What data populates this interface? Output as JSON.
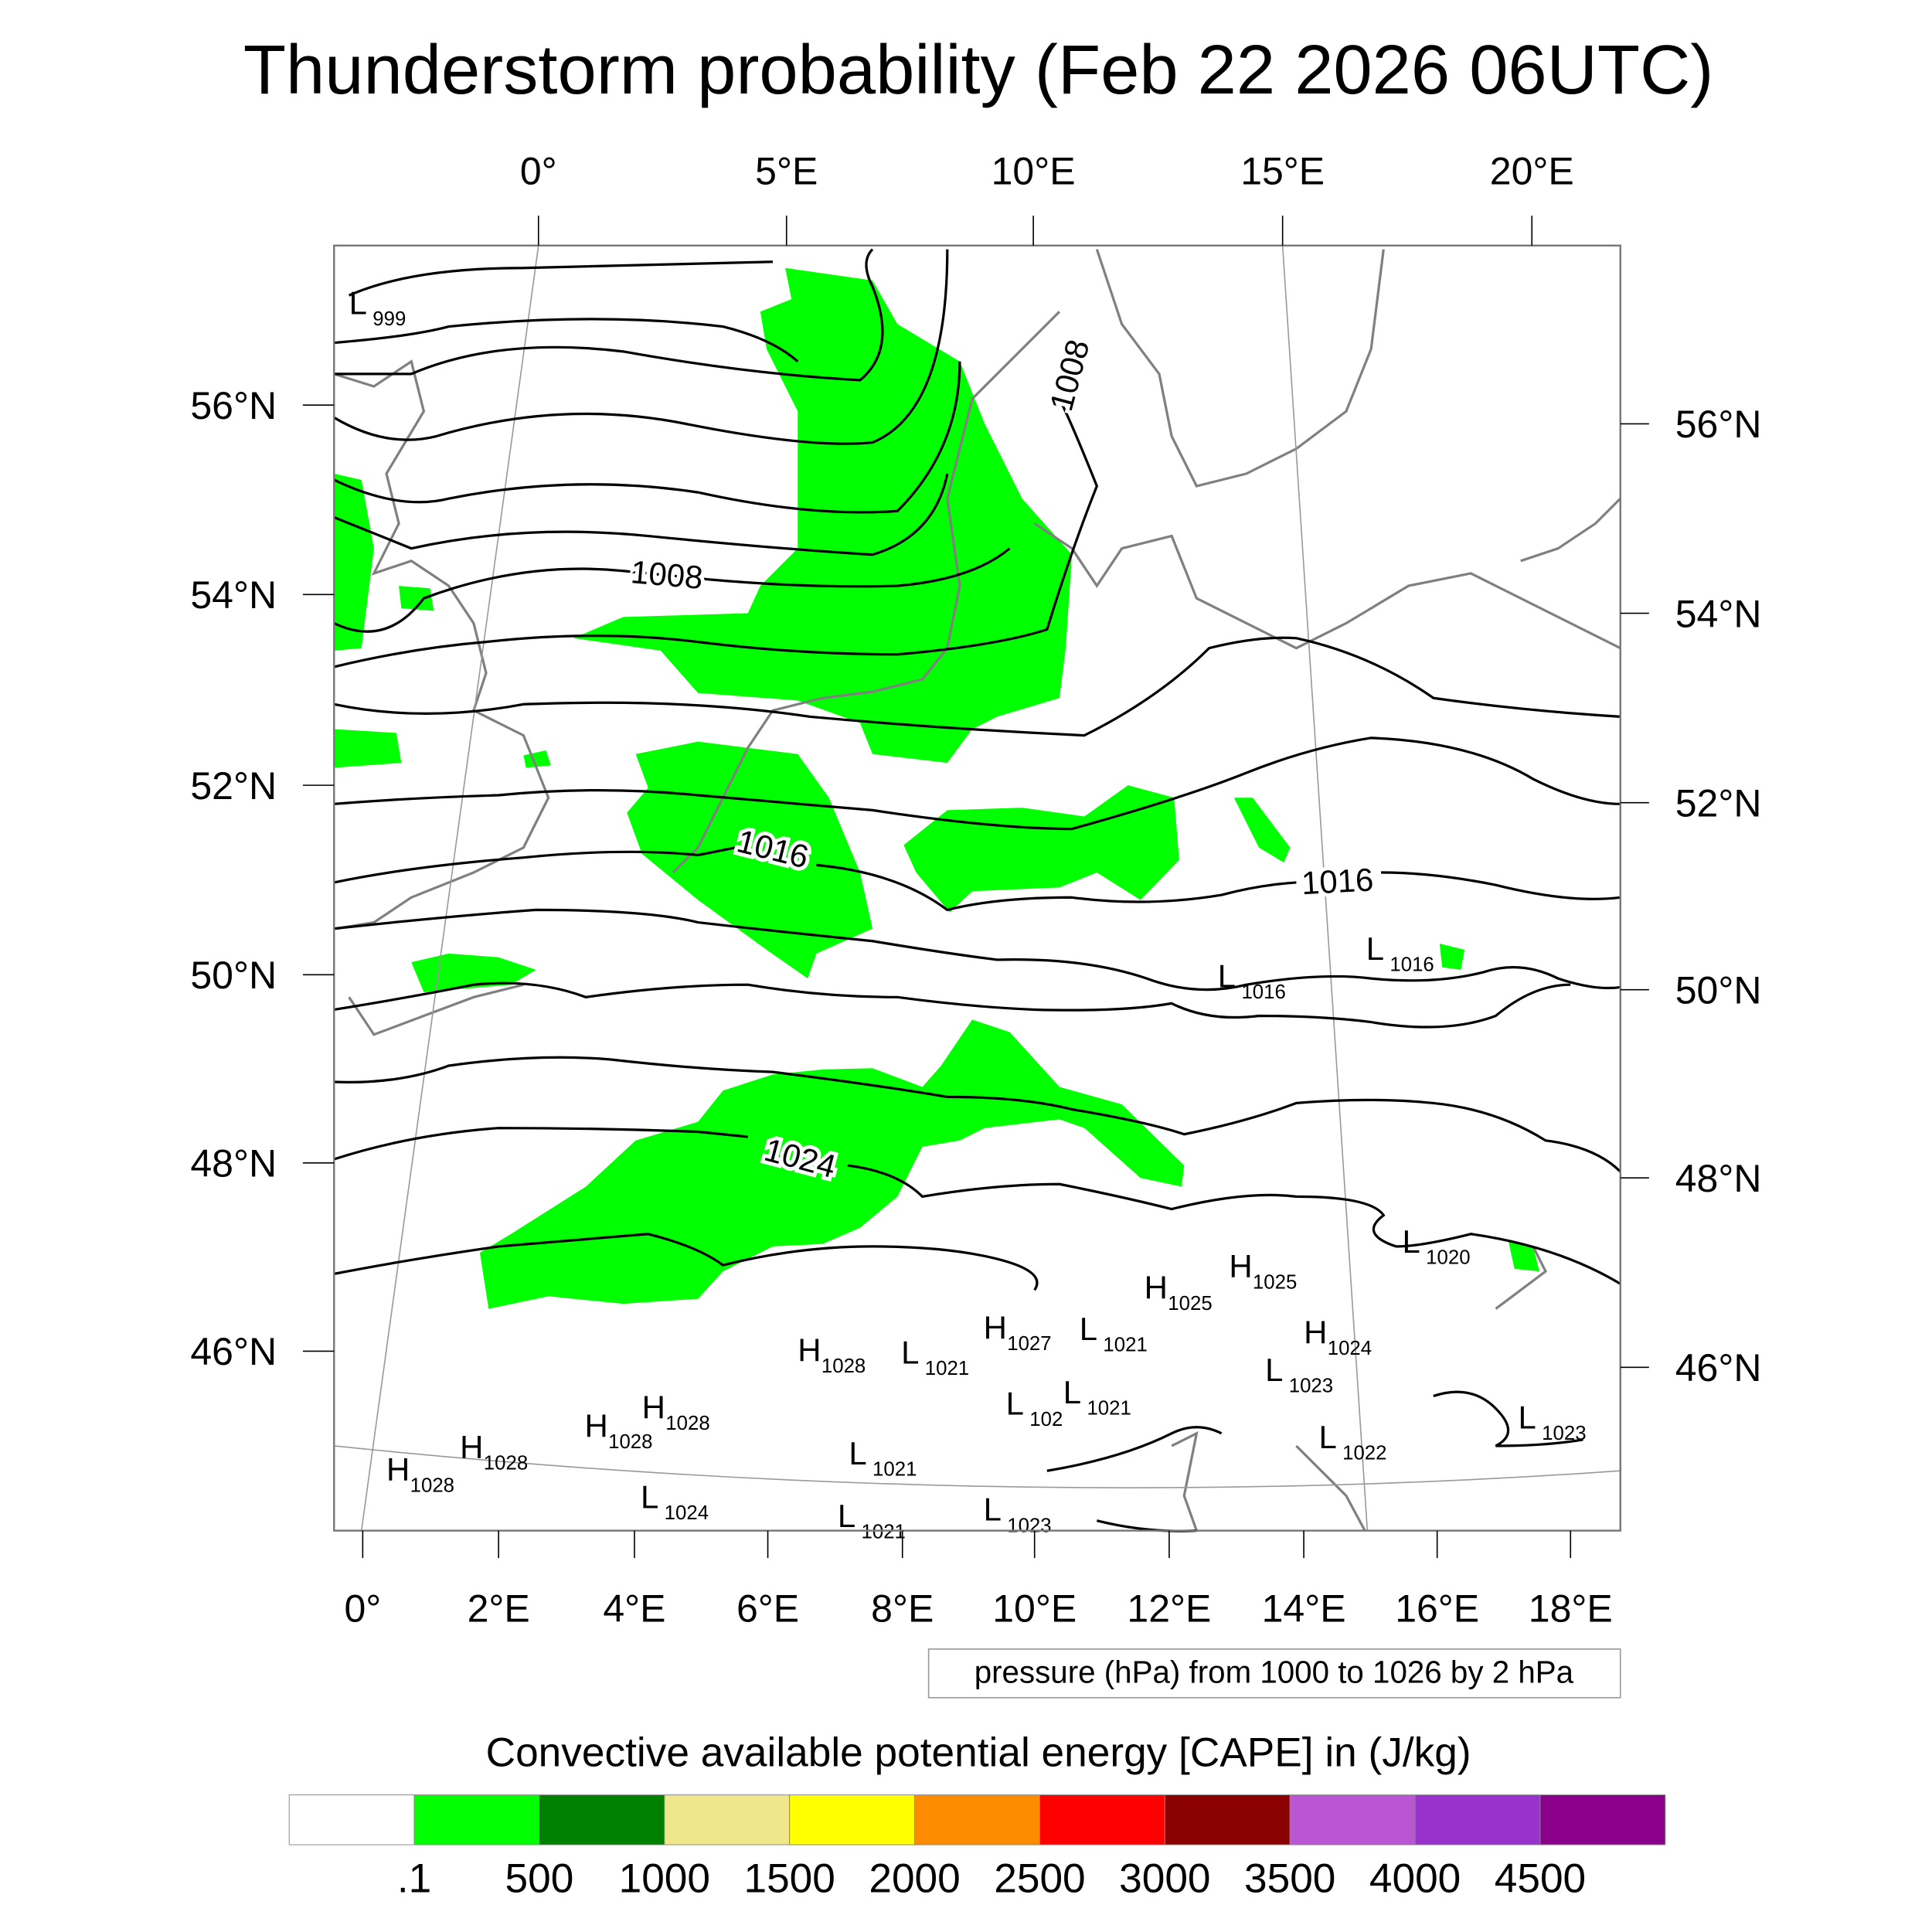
{
  "title": "Thunderstorm probability (Feb 22 2026 06UTC)",
  "axes": {
    "top_lon": [
      "0°",
      "5°E",
      "10°E",
      "15°E",
      "20°E"
    ],
    "bottom_lon": [
      "0°",
      "2°E",
      "4°E",
      "6°E",
      "8°E",
      "10°E",
      "12°E",
      "14°E",
      "16°E",
      "18°E"
    ],
    "left_lat": [
      "56°N",
      "54°N",
      "52°N",
      "50°N",
      "48°N",
      "46°N"
    ],
    "right_lat": [
      "56°N",
      "54°N",
      "52°N",
      "50°N",
      "48°N",
      "46°N"
    ]
  },
  "isobar_labels": [
    "1008",
    "1008",
    "1016",
    "1016",
    "1024"
  ],
  "pressure_centers": [
    {
      "letter": "L",
      "value": "999"
    },
    {
      "letter": "L",
      "value": "1016"
    },
    {
      "letter": "L",
      "value": "1016"
    },
    {
      "letter": "L",
      "value": "1020"
    },
    {
      "letter": "H",
      "value": "1025"
    },
    {
      "letter": "H",
      "value": "1025"
    },
    {
      "letter": "H",
      "value": "1024"
    },
    {
      "letter": "H",
      "value": "1027"
    },
    {
      "letter": "L",
      "value": "1021"
    },
    {
      "letter": "H",
      "value": "1028"
    },
    {
      "letter": "L",
      "value": "1021"
    },
    {
      "letter": "L",
      "value": "1023"
    },
    {
      "letter": "L",
      "value": "1021"
    },
    {
      "letter": "L",
      "value": "102"
    },
    {
      "letter": "H",
      "value": "1028"
    },
    {
      "letter": "H",
      "value": "1028"
    },
    {
      "letter": "H",
      "value": "1028"
    },
    {
      "letter": "H",
      "value": "1028"
    },
    {
      "letter": "L",
      "value": "1021"
    },
    {
      "letter": "L",
      "value": "1022"
    },
    {
      "letter": "L",
      "value": "1023"
    },
    {
      "letter": "L",
      "value": "1024"
    },
    {
      "letter": "L",
      "value": "1021"
    },
    {
      "letter": "L",
      "value": "1023"
    }
  ],
  "contour_legend": "pressure (hPa) from 1000 to 1026 by 2 hPa",
  "colorbar": {
    "title": "Convective available potential energy [CAPE] in (J/kg)",
    "labels": [
      ".1",
      "500",
      "1000",
      "1500",
      "2000",
      "2500",
      "3000",
      "3500",
      "4000",
      "4500"
    ],
    "colors": [
      "#ffffff",
      "#00ff00",
      "#008000",
      "#f0e68c",
      "#ffff00",
      "#ff8c00",
      "#ff0000",
      "#8b0000",
      "#ba55d3",
      "#9932cc",
      "#8b008b"
    ]
  },
  "colors": {
    "cape_low": "#00ff00",
    "coastline": "#808080",
    "isobar": "#000000"
  }
}
